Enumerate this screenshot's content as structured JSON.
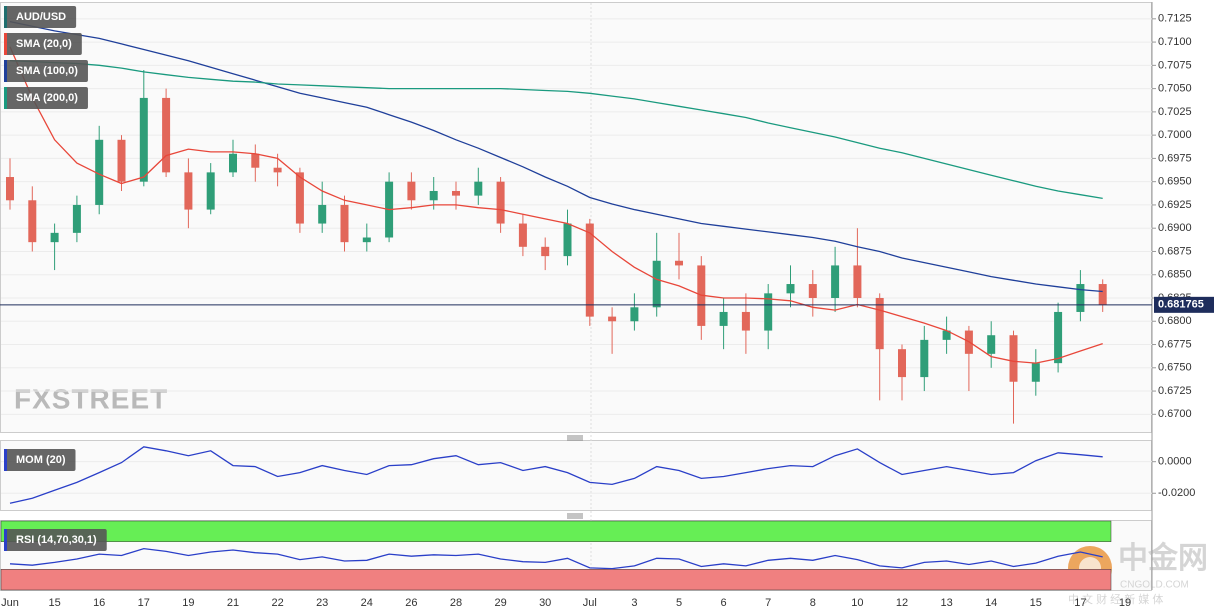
{
  "chart_data": [
    {
      "type": "candlestick",
      "name": "AUD/USD",
      "color": "#1f6e6e",
      "categories": [
        "Jun",
        null,
        "15",
        null,
        "16",
        null,
        "17",
        null,
        "19",
        null,
        "21",
        null,
        "22",
        null,
        "23",
        null,
        "24",
        null,
        "26",
        null,
        "28",
        null,
        "29",
        null,
        "30",
        null,
        "Jul",
        null,
        "3",
        null,
        "5",
        null,
        "6",
        null,
        "7",
        null,
        "8",
        null,
        "10",
        null,
        "12",
        null,
        "13",
        null,
        "14",
        null,
        "15",
        null,
        "17",
        null,
        "19"
      ],
      "open": [
        0.6955,
        0.693,
        0.6885,
        0.6895,
        0.6925,
        0.6995,
        0.695,
        0.704,
        0.696,
        0.692,
        0.696,
        0.698,
        0.6965,
        0.696,
        0.6905,
        0.6925,
        0.6885,
        0.689,
        0.695,
        0.693,
        0.694,
        0.6935,
        0.695,
        0.6905,
        0.688,
        0.687,
        0.6905,
        0.6805,
        0.68,
        0.6815,
        0.6865,
        0.686,
        0.6795,
        0.681,
        0.679,
        0.683,
        0.684,
        0.6825,
        0.686,
        0.6825,
        0.677,
        0.674,
        0.678,
        0.679,
        0.6765,
        0.6785,
        0.6735,
        0.6755,
        0.681,
        0.684,
        null
      ],
      "high": [
        0.6975,
        0.6945,
        0.6905,
        0.6935,
        0.701,
        0.7,
        0.707,
        0.705,
        0.6975,
        0.697,
        0.6995,
        0.699,
        0.698,
        0.6965,
        0.695,
        0.6935,
        0.6905,
        0.696,
        0.696,
        0.6955,
        0.695,
        0.6965,
        0.6955,
        0.6915,
        0.689,
        0.692,
        0.691,
        0.6815,
        0.683,
        0.6895,
        0.6895,
        0.687,
        0.6825,
        0.683,
        0.684,
        0.686,
        0.6855,
        0.688,
        0.69,
        0.683,
        0.6775,
        0.6795,
        0.6805,
        0.6795,
        0.68,
        0.679,
        0.677,
        0.682,
        0.6855,
        0.6845,
        null
      ],
      "low": [
        0.692,
        0.6875,
        0.6855,
        0.6885,
        0.6915,
        0.694,
        0.6945,
        0.6955,
        0.69,
        0.6915,
        0.6955,
        0.695,
        0.6945,
        0.6895,
        0.6895,
        0.6875,
        0.6875,
        0.6885,
        0.692,
        0.692,
        0.692,
        0.6925,
        0.6895,
        0.687,
        0.6855,
        0.686,
        0.6795,
        0.6765,
        0.679,
        0.6805,
        0.6845,
        0.678,
        0.677,
        0.6765,
        0.677,
        0.6815,
        0.6805,
        0.681,
        0.6815,
        0.6715,
        0.6715,
        0.6725,
        0.6765,
        0.6725,
        0.675,
        0.669,
        0.672,
        0.6745,
        0.68,
        0.681,
        null
      ],
      "close": [
        0.693,
        0.6885,
        0.6895,
        0.6925,
        0.6995,
        0.695,
        0.704,
        0.696,
        0.692,
        0.696,
        0.698,
        0.6965,
        0.696,
        0.6905,
        0.6925,
        0.6885,
        0.689,
        0.695,
        0.693,
        0.694,
        0.6935,
        0.695,
        0.6905,
        0.688,
        0.687,
        0.6905,
        0.6805,
        0.68,
        0.6815,
        0.6865,
        0.686,
        0.6795,
        0.681,
        0.679,
        0.683,
        0.684,
        0.6825,
        0.686,
        0.6825,
        0.677,
        0.674,
        0.678,
        0.679,
        0.6765,
        0.6785,
        0.6735,
        0.6755,
        0.681,
        0.684,
        0.681765,
        null
      ],
      "up_color": "#2f9e78",
      "down_color": "#e2675a",
      "overlays": [
        {
          "name": "SMA (20,0)",
          "color": "#e8473a",
          "values": [
            0.7095,
            0.704,
            0.6995,
            0.697,
            0.6958,
            0.6948,
            0.6955,
            0.6978,
            0.6985,
            0.6982,
            0.6982,
            0.698,
            0.6975,
            0.6955,
            0.694,
            0.693,
            0.6925,
            0.692,
            0.6922,
            0.6925,
            0.6925,
            0.6922,
            0.692,
            0.6915,
            0.691,
            0.6905,
            0.6895,
            0.6875,
            0.6858,
            0.6845,
            0.6838,
            0.6828,
            0.6825,
            0.6825,
            0.6824,
            0.6822,
            0.6815,
            0.6812,
            0.6818,
            0.6812,
            0.6805,
            0.6798,
            0.679,
            0.6778,
            0.6762,
            0.6757,
            0.6755,
            0.676,
            0.6768,
            0.6776,
            null
          ]
        },
        {
          "name": "SMA (100,0)",
          "color": "#1f3f9a",
          "values": [
            0.7122,
            0.7117,
            0.7112,
            0.7108,
            0.7104,
            0.7098,
            0.7092,
            0.7086,
            0.708,
            0.7073,
            0.7066,
            0.7059,
            0.7052,
            0.7045,
            0.704,
            0.7035,
            0.703,
            0.7022,
            0.7014,
            0.7005,
            0.6995,
            0.6986,
            0.6976,
            0.6966,
            0.6955,
            0.6945,
            0.6933,
            0.6926,
            0.692,
            0.6915,
            0.691,
            0.6905,
            0.6902,
            0.6899,
            0.6896,
            0.6893,
            0.689,
            0.6886,
            0.688,
            0.6875,
            0.6868,
            0.6863,
            0.6858,
            0.6853,
            0.6848,
            0.6844,
            0.684,
            0.6837,
            0.6834,
            0.6832,
            null
          ]
        },
        {
          "name": "SMA (200,0)",
          "color": "#1a9a7f",
          "values": [
            0.708,
            0.7079,
            0.7078,
            0.7077,
            0.7075,
            0.7072,
            0.7068,
            0.7065,
            0.7062,
            0.706,
            0.7058,
            0.7057,
            0.7055,
            0.7054,
            0.7053,
            0.7052,
            0.7051,
            0.705,
            0.705,
            0.705,
            0.705,
            0.705,
            0.705,
            0.7049,
            0.7048,
            0.7047,
            0.7045,
            0.7042,
            0.7039,
            0.7035,
            0.7031,
            0.7027,
            0.7023,
            0.7019,
            0.7013,
            0.7008,
            0.7003,
            0.6998,
            0.6992,
            0.6986,
            0.6981,
            0.6975,
            0.6969,
            0.6963,
            0.6957,
            0.6951,
            0.6945,
            0.694,
            0.6936,
            0.6932,
            null
          ]
        }
      ],
      "last_price": 0.681765,
      "last_price_color": "#1e2d5c",
      "ylim": [
        0.6681,
        0.7142
      ],
      "yticks": [
        0.7125,
        {
          "value": 0.71,
          "label": "0.7100"
        },
        0.7075,
        {
          "value": 0.705,
          "label": "0.7050"
        },
        0.7025,
        {
          "value": 0.7,
          "label": "0.7000"
        },
        0.6975,
        {
          "value": 0.695,
          "label": "0.6950"
        },
        0.6925,
        {
          "value": 0.69,
          "label": "0.6900"
        },
        0.6875,
        {
          "value": 0.685,
          "label": "0.6850"
        },
        0.6825,
        {
          "value": 0.68,
          "label": "0.6800"
        },
        0.6775,
        {
          "value": 0.675,
          "label": "0.6750"
        },
        0.6725,
        {
          "value": 0.67,
          "label": "0.6700"
        }
      ],
      "grid": true
    },
    {
      "type": "line",
      "series": [
        {
          "name": "MOM (20)",
          "color": "#2a3fc8",
          "values": [
            -0.0263,
            -0.0231,
            -0.0181,
            -0.0131,
            -0.0069,
            -0.0006,
            0.0094,
            0.0069,
            0.0038,
            0.0069,
            -0.0025,
            -0.0031,
            -0.0094,
            -0.0069,
            -0.0025,
            -0.0056,
            -0.0081,
            -0.0025,
            -0.0019,
            0.0019,
            0.0038,
            -0.0019,
            -0.0006,
            -0.0056,
            -0.0031,
            -0.0069,
            -0.0131,
            -0.0144,
            -0.0106,
            -0.0031,
            -0.0056,
            -0.0106,
            -0.0094,
            -0.0069,
            -0.0044,
            -0.0025,
            -0.0031,
            0.0038,
            0.0081,
            -0.0006,
            -0.0081,
            -0.0056,
            -0.0031,
            -0.0056,
            -0.0081,
            -0.0069,
            0.0006,
            0.0056,
            0.0044,
            0.0031,
            null
          ]
        }
      ],
      "ylim": [
        -0.0306,
        0.0131
      ],
      "yticks": [
        {
          "value": 0,
          "label": "0.0000"
        },
        {
          "value": -0.02,
          "label": "-0.0200"
        }
      ]
    },
    {
      "type": "line",
      "series": [
        {
          "name": "RSI (14,70,30,1)",
          "color": "#2a3fc8",
          "values": [
            38,
            36,
            40,
            45,
            52,
            50,
            60,
            56,
            50,
            55,
            58,
            54,
            52,
            44,
            48,
            42,
            43,
            52,
            49,
            51,
            50,
            52,
            45,
            41,
            40,
            46,
            32,
            31,
            35,
            46,
            45,
            34,
            38,
            35,
            43,
            46,
            43,
            50,
            44,
            35,
            32,
            40,
            42,
            37,
            42,
            34,
            39,
            49,
            55,
            48,
            null
          ]
        }
      ],
      "ylim": [
        0,
        100
      ],
      "overbought": 70,
      "oversold": 30,
      "overbought_color": "#66ee55",
      "oversold_color": "#f08080"
    }
  ],
  "watermark": {
    "logo": "FXSTREET",
    "brand": "中金网",
    "site": "CNGOLD.COM",
    "slogan": "中 文 财 经 新 媒 体"
  }
}
